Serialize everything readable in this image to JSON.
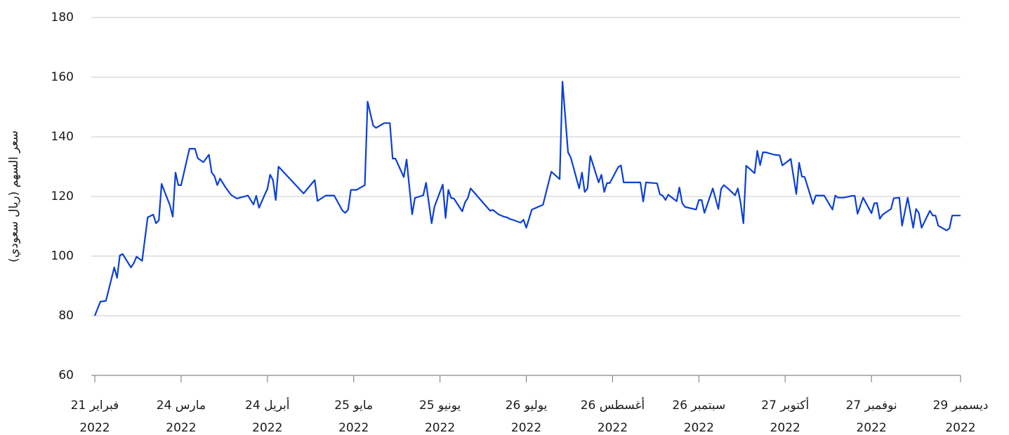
{
  "chart_data": {
    "type": "line",
    "y_label": "سعر السهم (ريال سعودي)",
    "ylim": [
      60,
      180
    ],
    "yticks": [
      60,
      80,
      100,
      120,
      140,
      160,
      180
    ],
    "xlim": [
      "2022-02-21",
      "2022-12-29"
    ],
    "xticks": [
      {
        "value": "2022-02-21",
        "label": [
          "21 فبراير",
          "2022"
        ]
      },
      {
        "value": "2022-03-24",
        "label": [
          "24 مارس",
          "2022"
        ]
      },
      {
        "value": "2022-04-24",
        "label": [
          "24 أبريل",
          "2022"
        ]
      },
      {
        "value": "2022-05-25",
        "label": [
          "25 مايو",
          "2022"
        ]
      },
      {
        "value": "2022-06-25",
        "label": [
          "25 يونيو",
          "2022"
        ]
      },
      {
        "value": "2022-07-26",
        "label": [
          "26 يوليو",
          "2022"
        ]
      },
      {
        "value": "2022-08-26",
        "label": [
          "26 أغسطس",
          "2022"
        ]
      },
      {
        "value": "2022-09-26",
        "label": [
          "26 سبتمبر",
          "2022"
        ]
      },
      {
        "value": "2022-10-27",
        "label": [
          "27 أكتوبر",
          "2022"
        ]
      },
      {
        "value": "2022-11-27",
        "label": [
          "27 نوفمبر",
          "2022"
        ]
      },
      {
        "value": "2022-12-29",
        "label": [
          "29 ديسمبر",
          "2022"
        ]
      }
    ],
    "grid": true,
    "x": [
      "2022-02-21",
      "2022-02-23",
      "2022-02-25",
      "2022-02-28",
      "2022-03-01",
      "2022-03-02",
      "2022-03-03",
      "2022-03-06",
      "2022-03-07",
      "2022-03-08",
      "2022-03-10",
      "2022-03-12",
      "2022-03-14",
      "2022-03-15",
      "2022-03-16",
      "2022-03-17",
      "2022-03-20",
      "2022-03-21",
      "2022-03-22",
      "2022-03-23",
      "2022-03-24",
      "2022-03-27",
      "2022-03-29",
      "2022-03-30",
      "2022-04-01",
      "2022-04-03",
      "2022-04-04",
      "2022-04-05",
      "2022-04-06",
      "2022-04-07",
      "2022-04-09",
      "2022-04-11",
      "2022-04-13",
      "2022-04-17",
      "2022-04-19",
      "2022-04-20",
      "2022-04-21",
      "2022-04-23",
      "2022-04-24",
      "2022-04-25",
      "2022-04-26",
      "2022-04-27",
      "2022-04-28",
      "2022-05-07",
      "2022-05-11",
      "2022-05-12",
      "2022-05-15",
      "2022-05-18",
      "2022-05-21",
      "2022-05-22",
      "2022-05-23",
      "2022-05-24",
      "2022-05-26",
      "2022-05-29",
      "2022-05-30",
      "2022-06-01",
      "2022-06-02",
      "2022-06-05",
      "2022-06-07",
      "2022-06-08",
      "2022-06-09",
      "2022-06-12",
      "2022-06-13",
      "2022-06-15",
      "2022-06-16",
      "2022-06-19",
      "2022-06-20",
      "2022-06-22",
      "2022-06-23",
      "2022-06-26",
      "2022-06-27",
      "2022-06-28",
      "2022-06-29",
      "2022-06-30",
      "2022-07-03",
      "2022-07-04",
      "2022-07-05",
      "2022-07-06",
      "2022-07-13",
      "2022-07-14",
      "2022-07-16",
      "2022-07-18",
      "2022-07-19",
      "2022-07-20",
      "2022-07-21",
      "2022-07-24",
      "2022-07-25",
      "2022-07-26",
      "2022-07-28",
      "2022-08-01",
      "2022-08-04",
      "2022-08-07",
      "2022-08-08",
      "2022-08-09",
      "2022-08-10",
      "2022-08-11",
      "2022-08-14",
      "2022-08-15",
      "2022-08-16",
      "2022-08-17",
      "2022-08-18",
      "2022-08-21",
      "2022-08-22",
      "2022-08-23",
      "2022-08-24",
      "2022-08-25",
      "2022-08-28",
      "2022-08-29",
      "2022-08-30",
      "2022-09-05",
      "2022-09-06",
      "2022-09-07",
      "2022-09-11",
      "2022-09-12",
      "2022-09-13",
      "2022-09-14",
      "2022-09-15",
      "2022-09-18",
      "2022-09-19",
      "2022-09-20",
      "2022-09-21",
      "2022-09-25",
      "2022-09-26",
      "2022-09-27",
      "2022-09-28",
      "2022-10-01",
      "2022-10-03",
      "2022-10-04",
      "2022-10-05",
      "2022-10-07",
      "2022-10-09",
      "2022-10-10",
      "2022-10-11",
      "2022-10-12",
      "2022-10-13",
      "2022-10-16",
      "2022-10-17",
      "2022-10-18",
      "2022-10-19",
      "2022-10-20",
      "2022-10-23",
      "2022-10-25",
      "2022-10-26",
      "2022-10-29",
      "2022-10-31",
      "2022-11-01",
      "2022-11-02",
      "2022-11-03",
      "2022-11-06",
      "2022-11-07",
      "2022-11-10",
      "2022-11-13",
      "2022-11-14",
      "2022-11-15",
      "2022-11-17",
      "2022-11-20",
      "2022-11-21",
      "2022-11-22",
      "2022-11-24",
      "2022-11-27",
      "2022-11-28",
      "2022-11-29",
      "2022-11-30",
      "2022-12-01",
      "2022-12-04",
      "2022-12-05",
      "2022-12-07",
      "2022-12-08",
      "2022-12-10",
      "2022-12-12",
      "2022-12-13",
      "2022-12-14",
      "2022-12-15",
      "2022-12-18",
      "2022-12-19",
      "2022-12-20",
      "2022-12-21",
      "2022-12-24",
      "2022-12-25",
      "2022-12-26",
      "2022-12-29"
    ],
    "series": [
      {
        "color": "#0b3fd6",
        "values": [
          80,
          84.7,
          85,
          96.2,
          92.7,
          100.2,
          100.7,
          96.2,
          97.6,
          99.8,
          98.4,
          113,
          113.9,
          111,
          112,
          124.2,
          117,
          113.2,
          128,
          123.8,
          123.8,
          136,
          136,
          132.8,
          131.5,
          134,
          128,
          126.8,
          123.8,
          126,
          123,
          120.5,
          119.3,
          120.3,
          117.3,
          120.2,
          116.2,
          120.5,
          122.5,
          127.3,
          125.5,
          118.8,
          130,
          121,
          125.5,
          118.5,
          120.3,
          120.3,
          115.2,
          114.5,
          115.6,
          122.2,
          122.2,
          123.8,
          151.8,
          143.8,
          143,
          144.6,
          144.6,
          132.7,
          132.7,
          126.5,
          132.4,
          114,
          119.5,
          120.4,
          124.6,
          111,
          116.5,
          124,
          112.8,
          122.2,
          119.5,
          119.3,
          115,
          118,
          119.5,
          122.7,
          115.2,
          115.5,
          114,
          113.2,
          113,
          112.5,
          112.2,
          111.2,
          112.2,
          109.5,
          115.6,
          117.2,
          128.3,
          125.8,
          158.5,
          146.8,
          134.8,
          133,
          122.7,
          128,
          121.5,
          122.7,
          133.6,
          124.7,
          127.3,
          121.5,
          124.5,
          124.5,
          129.8,
          130.4,
          124.7,
          124.7,
          118.3,
          124.7,
          124.4,
          120.7,
          120.3,
          118.8,
          120.6,
          118.4,
          123,
          117.8,
          116.5,
          115.6,
          118.8,
          118.8,
          114.5,
          122.7,
          115.8,
          122.6,
          123.8,
          122.2,
          120.4,
          122.7,
          117.8,
          111,
          130.3,
          127.8,
          135.3,
          130.5,
          134.8,
          134.8,
          134,
          133.8,
          130.4,
          132.6,
          120.8,
          131.3,
          126.7,
          126.5,
          117.5,
          120.3,
          120.3,
          115.6,
          120.3,
          119.6,
          119.6,
          120.2,
          120.2,
          114.2,
          119.6,
          114.4,
          117.7,
          117.8,
          112.5,
          113.9,
          115.8,
          119.4,
          119.6,
          110.2,
          119.6,
          109.5,
          115.8,
          114.5,
          109.5,
          115.2,
          113.6,
          113.6,
          110.2,
          108.6,
          109.3,
          113.6,
          113.6
        ]
      }
    ]
  }
}
